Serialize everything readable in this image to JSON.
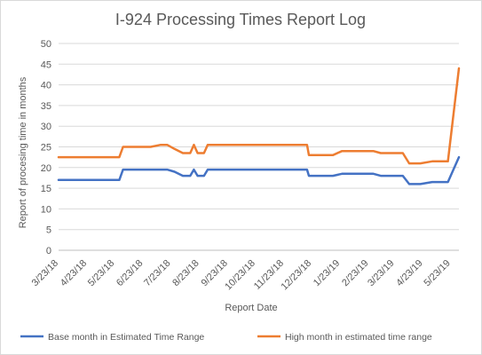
{
  "chart_data": {
    "type": "line",
    "title": "I-924 Processing Times Report Log",
    "xlabel": "Report Date",
    "ylabel": "Report of procesing time in months",
    "ylim": [
      0,
      50
    ],
    "yticks": [
      0,
      5,
      10,
      15,
      20,
      25,
      30,
      35,
      40,
      45,
      50
    ],
    "x_ticks": [
      "3/23/18",
      "4/23/18",
      "5/23/18",
      "6/23/18",
      "7/23/18",
      "8/23/18",
      "9/23/18",
      "10/23/18",
      "11/23/18",
      "12/23/18",
      "1/23/19",
      "2/23/19",
      "3/23/19",
      "4/23/19",
      "5/23/19"
    ],
    "x_range": [
      "2018-03-23",
      "2019-06-01"
    ],
    "grid": "horizontal",
    "legend_position": "bottom",
    "series": [
      {
        "name": "Base month in Estimated Time Range",
        "color": "#4472C4",
        "points": [
          [
            "2018-03-23",
            17
          ],
          [
            "2018-05-28",
            17
          ],
          [
            "2018-06-01",
            19.5
          ],
          [
            "2018-07-19",
            19.5
          ],
          [
            "2018-07-27",
            19
          ],
          [
            "2018-08-05",
            18
          ],
          [
            "2018-08-13",
            18
          ],
          [
            "2018-08-17",
            19.5
          ],
          [
            "2018-08-21",
            18
          ],
          [
            "2018-08-28",
            18
          ],
          [
            "2018-09-01",
            19.5
          ],
          [
            "2018-12-18",
            19.5
          ],
          [
            "2018-12-20",
            18
          ],
          [
            "2019-01-15",
            18
          ],
          [
            "2019-01-25",
            18.5
          ],
          [
            "2019-02-28",
            18.5
          ],
          [
            "2019-03-08",
            18
          ],
          [
            "2019-04-01",
            18
          ],
          [
            "2019-04-08",
            16
          ],
          [
            "2019-04-20",
            16
          ],
          [
            "2019-05-03",
            16.5
          ],
          [
            "2019-05-20",
            16.5
          ],
          [
            "2019-06-01",
            22.5
          ]
        ]
      },
      {
        "name": "High month in estimated time range",
        "color": "#ED7D31",
        "points": [
          [
            "2018-03-23",
            22.5
          ],
          [
            "2018-05-28",
            22.5
          ],
          [
            "2018-06-01",
            25
          ],
          [
            "2018-07-01",
            25
          ],
          [
            "2018-07-12",
            25.5
          ],
          [
            "2018-07-19",
            25.5
          ],
          [
            "2018-07-27",
            24.5
          ],
          [
            "2018-08-05",
            23.5
          ],
          [
            "2018-08-13",
            23.5
          ],
          [
            "2018-08-17",
            25.5
          ],
          [
            "2018-08-21",
            23.5
          ],
          [
            "2018-08-28",
            23.5
          ],
          [
            "2018-09-01",
            25.5
          ],
          [
            "2018-12-18",
            25.5
          ],
          [
            "2018-12-20",
            23
          ],
          [
            "2019-01-15",
            23
          ],
          [
            "2019-01-25",
            24
          ],
          [
            "2019-02-28",
            24
          ],
          [
            "2019-03-08",
            23.5
          ],
          [
            "2019-04-01",
            23.5
          ],
          [
            "2019-04-08",
            21
          ],
          [
            "2019-04-20",
            21
          ],
          [
            "2019-05-03",
            21.5
          ],
          [
            "2019-05-20",
            21.5
          ],
          [
            "2019-06-01",
            44
          ]
        ]
      }
    ]
  }
}
